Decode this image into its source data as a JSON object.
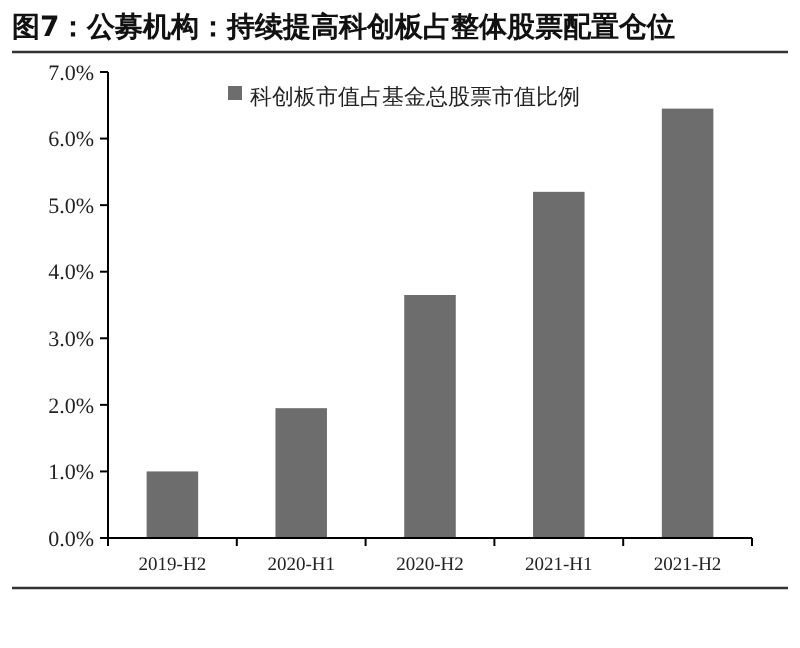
{
  "chart_data": {
    "type": "bar",
    "title": "图7：公募机构：持续提高科创板占整体股票配置仓位",
    "categories": [
      "2019-H2",
      "2020-H1",
      "2020-H2",
      "2021-H1",
      "2021-H2"
    ],
    "series": [
      {
        "name": "科创板市值占基金总股票市值比例",
        "color": "#6d6d6d",
        "values": [
          1.0,
          1.95,
          3.65,
          5.2,
          6.45
        ]
      }
    ],
    "ylim": [
      0,
      7
    ],
    "yticks": [
      {
        "value": 0,
        "label": "0.0%"
      },
      {
        "value": 1,
        "label": "1.0%"
      },
      {
        "value": 2,
        "label": "2.0%"
      },
      {
        "value": 3,
        "label": "3.0%"
      },
      {
        "value": 4,
        "label": "4.0%"
      },
      {
        "value": 5,
        "label": "5.0%"
      },
      {
        "value": 6,
        "label": "6.0%"
      },
      {
        "value": 7,
        "label": "7.0%"
      }
    ],
    "grid": false,
    "legend": "top"
  }
}
